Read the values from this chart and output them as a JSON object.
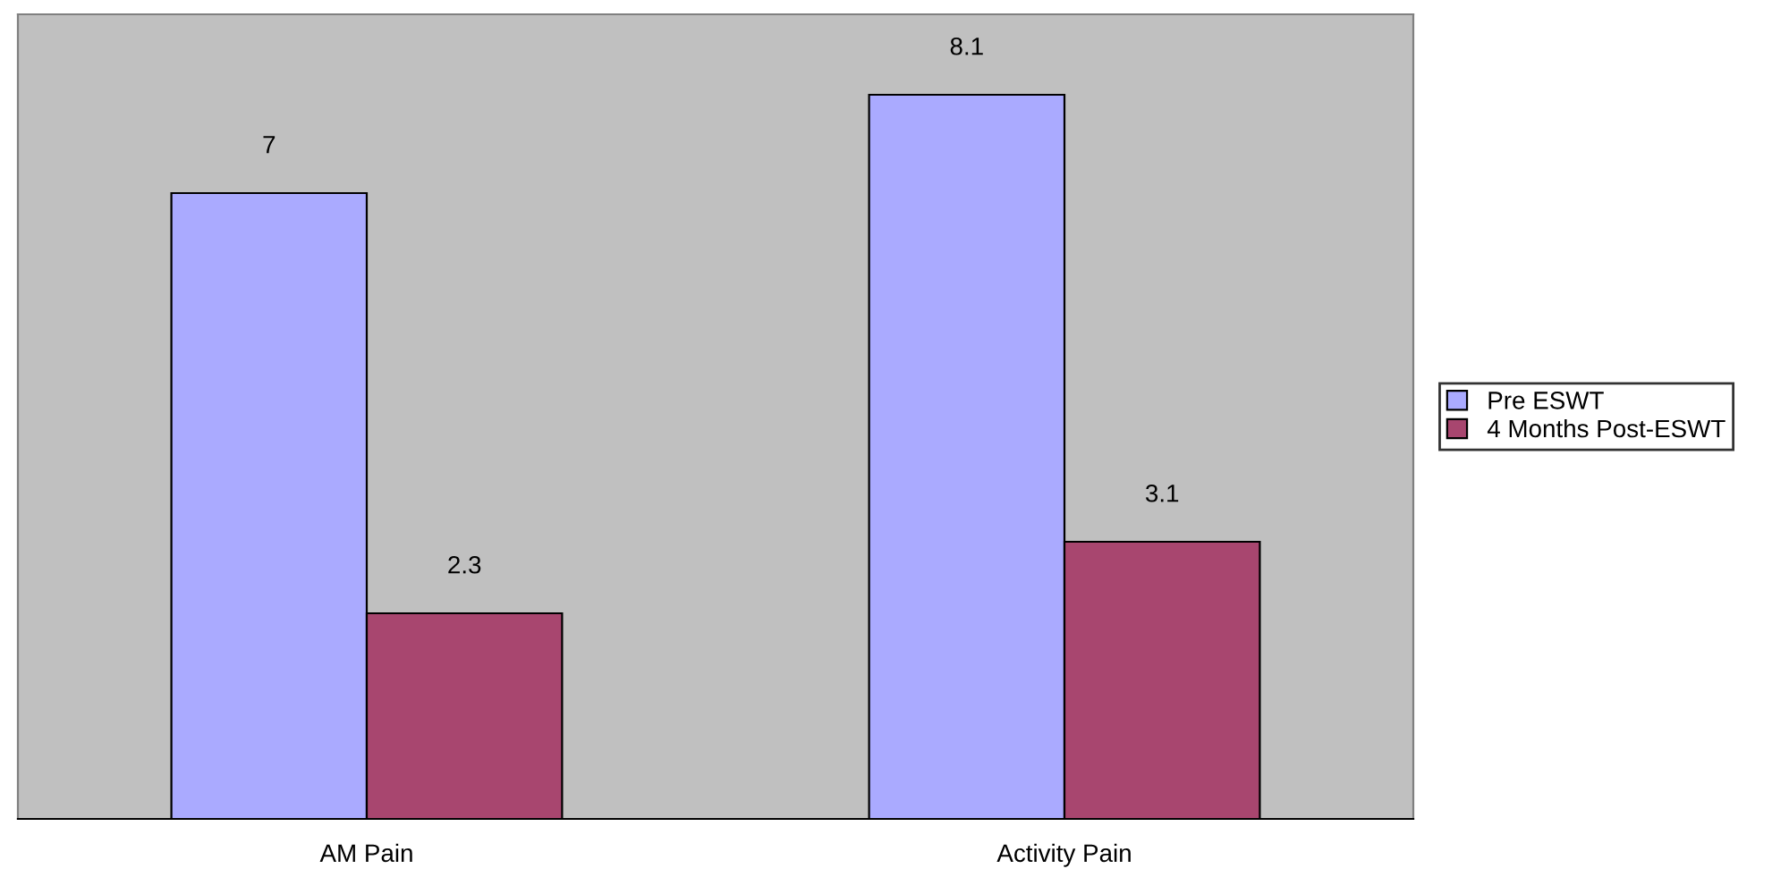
{
  "chart_data": {
    "type": "bar",
    "categories": [
      "AM Pain",
      "Activity Pain"
    ],
    "series": [
      {
        "name": "Pre ESWT",
        "color": "#aaaaff",
        "values": [
          7,
          8.1
        ]
      },
      {
        "name": "4 Months Post-ESWT",
        "color": "#a8466f",
        "values": [
          2.3,
          3.1
        ]
      }
    ],
    "ylim": [
      0,
      9
    ],
    "data_labels": true,
    "legend": "right",
    "tick_labels": "x",
    "grid": false
  }
}
